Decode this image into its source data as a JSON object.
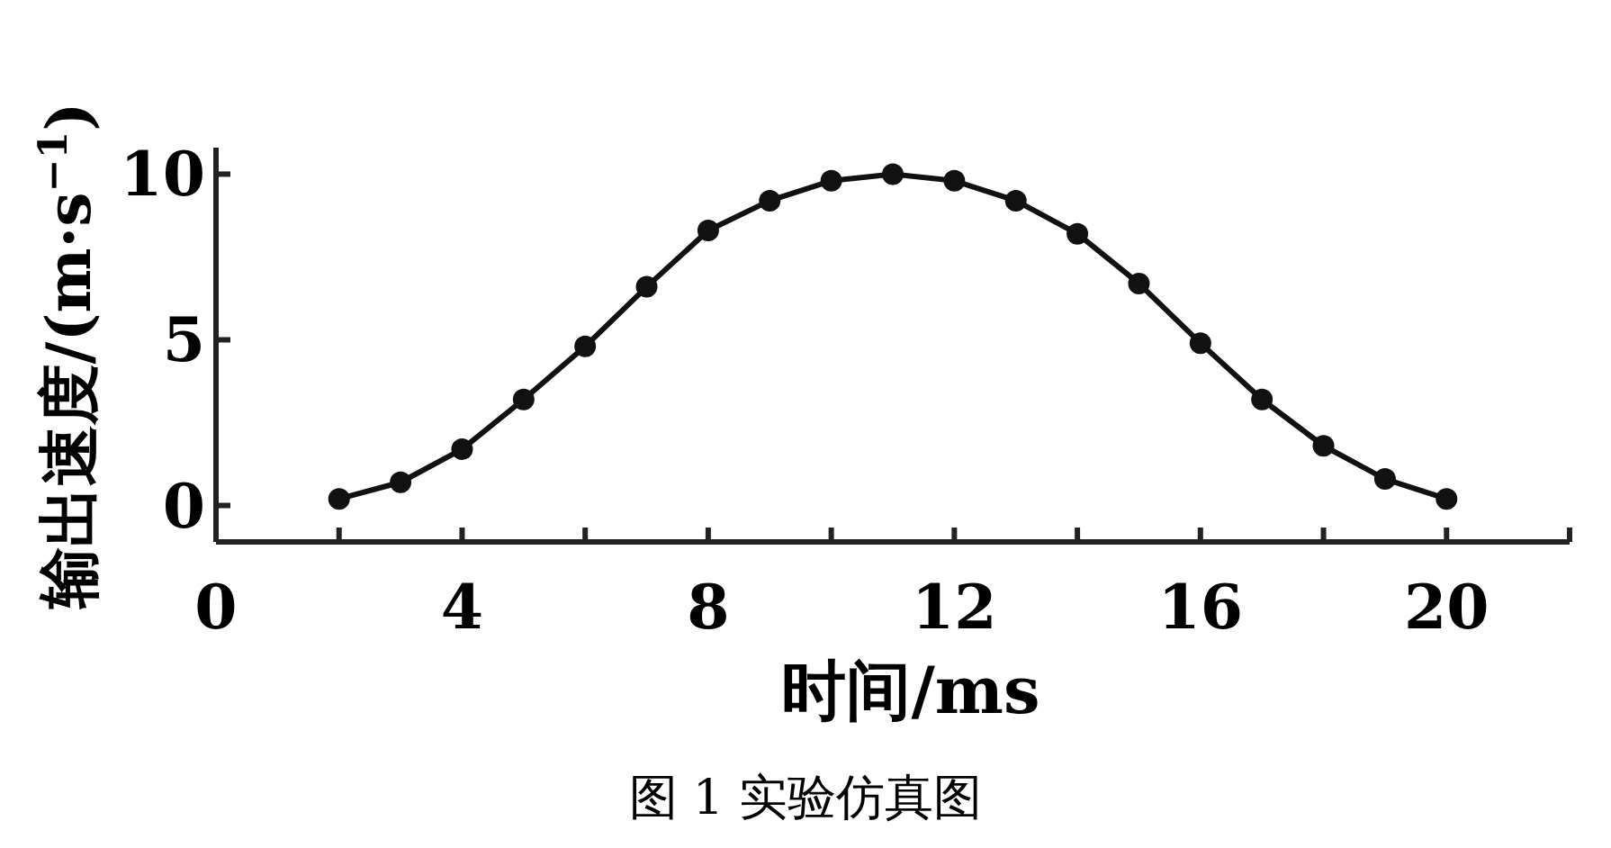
{
  "chart_data": {
    "type": "line",
    "xlabel": "时间/ms",
    "ylabel": "输出速度/(m·s$^{−1}$)",
    "annotations": [
      "图 1 实验仿真图"
    ],
    "x": [
      2,
      3,
      4,
      5,
      6,
      7,
      8,
      9,
      10,
      11,
      12,
      13,
      14,
      15,
      16,
      17,
      18,
      19,
      20
    ],
    "series": [
      {
        "color": "#111111",
        "values": [
          0.2,
          0.7,
          1.7,
          3.2,
          4.8,
          6.6,
          8.3,
          9.2,
          9.8,
          10.0,
          9.8,
          9.2,
          8.2,
          6.7,
          4.9,
          3.2,
          1.8,
          0.8,
          0.2
        ]
      }
    ],
    "xlim": [
      0,
      22
    ],
    "ylim": [
      -1.1,
      10.8
    ],
    "xticks": [
      0,
      {
        "value": 2,
        "label": null
      },
      4,
      {
        "value": 6,
        "label": null
      },
      8,
      {
        "value": 10,
        "label": null
      },
      12,
      {
        "value": 14,
        "label": null
      },
      16,
      {
        "value": 18,
        "label": null
      },
      20,
      {
        "value": 22,
        "label": null
      }
    ],
    "yticks": [
      0,
      5,
      10
    ],
    "marker": "circle",
    "line_style": "solid"
  }
}
